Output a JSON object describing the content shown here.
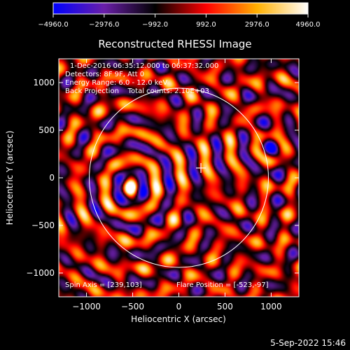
{
  "chart_data": {
    "type": "heatmap",
    "title": "Reconstructed RHESSI Image",
    "xlabel": "Heliocentric X (arcsec)",
    "ylabel": "Heliocentric Y (arcsec)",
    "xlim": [
      -1300,
      1300
    ],
    "ylim": [
      -1250,
      1250
    ],
    "x_ticks": [
      -1000,
      -500,
      0,
      500,
      1000
    ],
    "y_ticks": [
      -1000,
      -500,
      0,
      500,
      1000
    ],
    "x_tick_labels": [
      "−1000",
      "−500",
      "0",
      "500",
      "1000"
    ],
    "y_tick_labels": [
      "−1000",
      "−500",
      "0",
      "500",
      "1000"
    ],
    "colorbar": {
      "min": -4960.0,
      "max": 4960.0,
      "ticks": [
        -4960.0,
        -2976.0,
        -992.0,
        992.0,
        2976.0,
        4960.0
      ],
      "tick_labels": [
        "−4960.0",
        "−2976.0",
        "−992.0",
        "992.0",
        "2976.0",
        "4960.0"
      ],
      "colormap": [
        "#0000ff",
        "#6a1fa8",
        "#000000",
        "#ff0000",
        "#ffb000",
        "#ffffff"
      ]
    },
    "annotations": [
      "1-Dec-2016 06:35:12.000 to 06:37:32.000",
      "Detectors: 8F 9F, Att 0",
      "Energy Range: 6.0 - 12.0 keV",
      "Back Projection    Total counts: 2.10E+03"
    ],
    "footer_left": "Spin Axis = [239,103]",
    "footer_right": "Flare Position = [-523,-97]",
    "solar_limb": {
      "cx": 0,
      "cy": 0,
      "r": 970
    },
    "crosshair": {
      "x": 239,
      "y": 103
    },
    "sources": [
      {
        "x": -523,
        "y": -97,
        "amp": 1.0
      },
      {
        "x": 1000,
        "y": 320,
        "amp": -0.9
      }
    ]
  },
  "timestamp": "5-Sep-2022 15:46"
}
